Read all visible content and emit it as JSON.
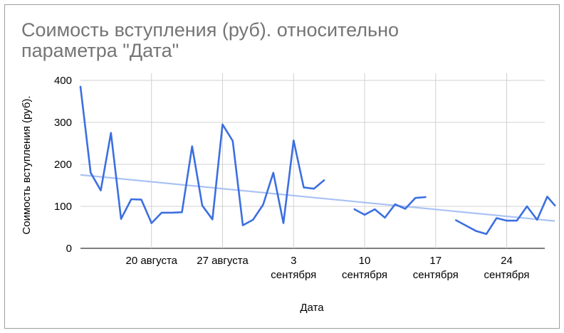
{
  "chart_data": {
    "type": "line",
    "title": "Соимость вступления (руб). относительно параметра \"Дата\"",
    "xlabel": "Дата",
    "ylabel": "Соимость вступления (руб).",
    "ylim": [
      0,
      400
    ],
    "yticks": [
      0,
      100,
      200,
      300,
      400
    ],
    "xlim": [
      "2023-08-13",
      "2023-09-28"
    ],
    "xticks": [
      {
        "date": "2023-08-20",
        "line1": "20 августа",
        "line2": ""
      },
      {
        "date": "2023-08-27",
        "line1": "27 августа",
        "line2": ""
      },
      {
        "date": "2023-09-03",
        "line1": "3",
        "line2": "сентября"
      },
      {
        "date": "2023-09-10",
        "line1": "10",
        "line2": "сентября"
      },
      {
        "date": "2023-09-17",
        "line1": "17",
        "line2": "сентября"
      },
      {
        "date": "2023-09-24",
        "line1": "24",
        "line2": "сентября"
      }
    ],
    "grid": true,
    "series": [
      {
        "color": "#3c6fe0",
        "segments": [
          [
            [
              "2023-08-13",
              385
            ],
            [
              "2023-08-14",
              180
            ],
            [
              "2023-08-15",
              138
            ],
            [
              "2023-08-16",
              275
            ],
            [
              "2023-08-17",
              70
            ],
            [
              "2023-08-18",
              117
            ],
            [
              "2023-08-19",
              116
            ],
            [
              "2023-08-20",
              60
            ],
            [
              "2023-08-21",
              85
            ],
            [
              "2023-08-22",
              85
            ],
            [
              "2023-08-23",
              86
            ],
            [
              "2023-08-24",
              243
            ],
            [
              "2023-08-25",
              102
            ],
            [
              "2023-08-26",
              69
            ],
            [
              "2023-08-27",
              295
            ],
            [
              "2023-08-28",
              256
            ],
            [
              "2023-08-29",
              55
            ],
            [
              "2023-08-30",
              68
            ],
            [
              "2023-08-31",
              104
            ],
            [
              "2023-09-01",
              180
            ],
            [
              "2023-09-02",
              60
            ],
            [
              "2023-09-03",
              257
            ],
            [
              "2023-09-04",
              145
            ],
            [
              "2023-09-05",
              142
            ],
            [
              "2023-09-06",
              162
            ]
          ],
          [
            [
              "2023-09-09",
              93
            ],
            [
              "2023-09-10",
              80
            ],
            [
              "2023-09-11",
              93
            ],
            [
              "2023-09-12",
              73
            ],
            [
              "2023-09-13",
              105
            ],
            [
              "2023-09-14",
              94
            ],
            [
              "2023-09-15",
              120
            ],
            [
              "2023-09-16",
              122
            ]
          ],
          [
            [
              "2023-09-19",
              67
            ],
            [
              "2023-09-20",
              54
            ],
            [
              "2023-09-21",
              41
            ],
            [
              "2023-09-22",
              34
            ],
            [
              "2023-09-23",
              72
            ],
            [
              "2023-09-24",
              66
            ],
            [
              "2023-09-25",
              66
            ],
            [
              "2023-09-26",
              100
            ],
            [
              "2023-09-27",
              68
            ],
            [
              "2023-09-28",
              123
            ],
            [
              "2023-09-28T18:00",
              102
            ]
          ]
        ]
      }
    ],
    "trendline": {
      "color": "#a9c2f5",
      "start": [
        "2023-08-13",
        175
      ],
      "end": [
        "2023-09-28T18:00",
        65
      ]
    }
  }
}
